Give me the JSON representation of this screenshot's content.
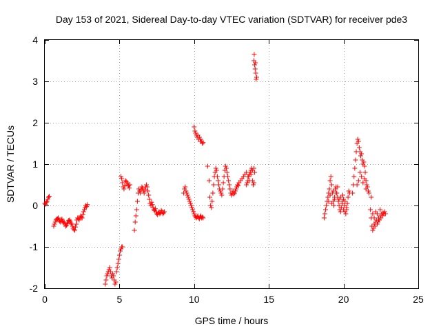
{
  "chart_data": {
    "type": "scatter",
    "title": "Day 153 of 2021, Sidereal Day-to-day VTEC variation (SDTVAR) for receiver pde3",
    "xlabel": "GPS time / hours",
    "ylabel": "SDTVAR / TECUs",
    "xlim": [
      0,
      25
    ],
    "ylim": [
      -2,
      4
    ],
    "xticks": [
      0,
      5,
      10,
      15,
      20,
      25
    ],
    "yticks": [
      -2,
      -1,
      0,
      1,
      2,
      3,
      4
    ],
    "xtick_labels": [
      "0",
      "5",
      "10",
      "15",
      "20",
      "25"
    ],
    "ytick_labels": [
      "-2",
      "-1",
      "0",
      "1",
      "2",
      "3",
      "4"
    ],
    "grid": true,
    "marker": "+",
    "series": [
      {
        "name": "pde3",
        "color": "#ff0000",
        "segments": [
          {
            "x": [
              0.0,
              0.05,
              0.1,
              0.15,
              0.2,
              0.25,
              0.3
            ],
            "y": [
              0.05,
              0.03,
              0.08,
              0.1,
              0.15,
              0.2,
              0.22
            ]
          },
          {
            "x": [
              0.6,
              0.65,
              0.7,
              0.75,
              0.8,
              0.85,
              0.9,
              0.95,
              1.0,
              1.05,
              1.1,
              1.15,
              1.2,
              1.25,
              1.3,
              1.35,
              1.4,
              1.45,
              1.5,
              1.55,
              1.6,
              1.65,
              1.7,
              1.75,
              1.8,
              1.85,
              1.9,
              1.95,
              2.0,
              2.05,
              2.1,
              2.15,
              2.2,
              2.25,
              2.3,
              2.35,
              2.4,
              2.45,
              2.5,
              2.55,
              2.6,
              2.65,
              2.7,
              2.75,
              2.8,
              2.85
            ],
            "y": [
              -0.5,
              -0.45,
              -0.4,
              -0.35,
              -0.33,
              -0.32,
              -0.3,
              -0.35,
              -0.38,
              -0.4,
              -0.35,
              -0.33,
              -0.38,
              -0.42,
              -0.4,
              -0.45,
              -0.5,
              -0.48,
              -0.44,
              -0.4,
              -0.36,
              -0.35,
              -0.38,
              -0.42,
              -0.45,
              -0.5,
              -0.55,
              -0.58,
              -0.6,
              -0.52,
              -0.45,
              -0.35,
              -0.3,
              -0.32,
              -0.35,
              -0.3,
              -0.25,
              -0.28,
              -0.3,
              -0.22,
              -0.15,
              -0.1,
              -0.05,
              0.0,
              -0.03,
              0.02
            ]
          },
          {
            "x": [
              4.05,
              4.1,
              4.15,
              4.2,
              4.25,
              4.3,
              4.35,
              4.4,
              4.45,
              4.5,
              4.55,
              4.6,
              4.65,
              4.7,
              4.75,
              4.8,
              4.85,
              4.9,
              4.95,
              5.0,
              5.05,
              5.1,
              5.15,
              5.2
            ],
            "y": [
              -1.9,
              -1.8,
              -1.7,
              -1.65,
              -1.6,
              -1.55,
              -1.5,
              -1.6,
              -1.7,
              -1.75,
              -1.65,
              -1.7,
              -1.8,
              -1.9,
              -1.85,
              -1.6,
              -1.5,
              -1.4,
              -1.3,
              -1.2,
              -1.1,
              -1.05,
              -1.0,
              -1.0
            ]
          },
          {
            "x": [
              5.1,
              5.15,
              5.2,
              5.25,
              5.3,
              5.35,
              5.4,
              5.45,
              5.5,
              5.55,
              5.6,
              5.65,
              5.7
            ],
            "y": [
              0.7,
              0.65,
              0.55,
              0.45,
              0.4,
              0.48,
              0.6,
              0.58,
              0.5,
              0.55,
              0.48,
              0.42,
              0.5
            ]
          },
          {
            "x": [
              6.0,
              6.05,
              6.1,
              6.15,
              6.2,
              6.25,
              6.3,
              6.35,
              6.4,
              6.45,
              6.5,
              6.55,
              6.6,
              6.65,
              6.7,
              6.75,
              6.8,
              6.85,
              6.9,
              6.95,
              7.0,
              7.05,
              7.1,
              7.15,
              7.2,
              7.25,
              7.3,
              7.35,
              7.4,
              7.45,
              7.5,
              7.55,
              7.6,
              7.65,
              7.7,
              7.75,
              7.8,
              7.85,
              7.9,
              7.95,
              8.0
            ],
            "y": [
              -0.6,
              -0.4,
              -0.25,
              -0.1,
              0.1,
              0.3,
              0.4,
              0.35,
              0.3,
              0.38,
              0.45,
              0.42,
              0.35,
              0.3,
              0.38,
              0.45,
              0.5,
              0.45,
              0.35,
              0.25,
              0.15,
              0.05,
              0.0,
              0.08,
              0.02,
              -0.05,
              -0.1,
              -0.12,
              -0.08,
              -0.15,
              -0.2,
              -0.22,
              -0.18,
              -0.15,
              -0.2,
              -0.18,
              -0.12,
              -0.15,
              -0.2,
              -0.18,
              -0.15
            ]
          },
          {
            "x": [
              9.3,
              9.35,
              9.4,
              9.45,
              9.5,
              9.55,
              9.6,
              9.65,
              9.7,
              9.75,
              9.8,
              9.85,
              9.9,
              9.95,
              10.0,
              10.05,
              10.1,
              10.15,
              10.2,
              10.25,
              10.3,
              10.35,
              10.4,
              10.45,
              10.5,
              10.55,
              10.6
            ],
            "y": [
              0.3,
              0.4,
              0.45,
              0.35,
              0.3,
              0.25,
              0.2,
              0.15,
              0.1,
              0.05,
              0.0,
              -0.05,
              -0.1,
              -0.15,
              -0.2,
              -0.25,
              -0.28,
              -0.3,
              -0.27,
              -0.25,
              -0.3,
              -0.32,
              -0.28,
              -0.25,
              -0.3,
              -0.28,
              -0.3
            ]
          },
          {
            "x": [
              10.0,
              10.05,
              10.1,
              10.15,
              10.2,
              10.25,
              10.3,
              10.35,
              10.4,
              10.45,
              10.5,
              10.55,
              10.6
            ],
            "y": [
              1.9,
              1.8,
              1.75,
              1.7,
              1.65,
              1.7,
              1.6,
              1.65,
              1.55,
              1.6,
              1.55,
              1.5,
              1.52
            ]
          },
          {
            "x": [
              10.9,
              11.0,
              11.05,
              11.1,
              11.15,
              11.2,
              11.25,
              11.3,
              11.35,
              11.4,
              11.45,
              11.5,
              11.55,
              11.6,
              11.65,
              11.7,
              11.75,
              11.8,
              11.85,
              11.9,
              11.95,
              12.0,
              12.05,
              12.1,
              12.15,
              12.2,
              12.25,
              12.3,
              12.35,
              12.4,
              12.45,
              12.5,
              12.55,
              12.6,
              12.65,
              12.7,
              12.75,
              12.8,
              12.85,
              12.9,
              12.95,
              13.0,
              13.1,
              13.2,
              13.3,
              13.4,
              13.5,
              13.6,
              13.7,
              13.8,
              13.9,
              14.0,
              14.05
            ],
            "y": [
              0.95,
              0.6,
              0.2,
              0.0,
              -0.05,
              0.1,
              0.3,
              0.5,
              0.7,
              0.8,
              0.9,
              0.85,
              0.7,
              0.6,
              0.5,
              0.4,
              0.35,
              0.3,
              0.25,
              0.4,
              0.55,
              0.7,
              0.85,
              0.95,
              0.9,
              0.8,
              0.7,
              0.6,
              0.5,
              0.4,
              0.3,
              0.25,
              0.3,
              0.35,
              0.28,
              0.3,
              0.35,
              0.4,
              0.45,
              0.5,
              0.48,
              0.55,
              0.6,
              0.65,
              0.7,
              0.75,
              0.8,
              0.7,
              0.6,
              0.75,
              0.85,
              0.9,
              0.8
            ]
          },
          {
            "x": [
              13.5,
              13.55,
              13.6,
              13.65,
              13.7,
              13.75,
              13.8,
              13.85,
              13.9,
              13.95,
              14.0
            ],
            "y": [
              0.5,
              0.55,
              0.6,
              0.7,
              0.75,
              0.8,
              0.85,
              0.9,
              0.6,
              0.5,
              0.55
            ]
          },
          {
            "x": [
              14.0,
              14.02,
              14.05,
              14.08,
              14.1,
              14.12,
              14.15,
              14.18
            ],
            "y": [
              3.5,
              3.65,
              3.4,
              3.3,
              3.45,
              3.2,
              3.05,
              3.1
            ]
          },
          {
            "x": [
              18.7,
              18.75,
              18.8,
              18.85,
              18.9,
              18.95,
              19.0,
              19.05,
              19.1,
              19.15,
              19.2,
              19.25,
              19.3,
              19.35,
              19.4,
              19.45,
              19.5,
              19.55,
              19.6,
              19.65,
              19.7,
              19.75,
              19.8,
              19.85,
              19.9,
              19.95,
              20.0,
              20.05,
              20.1,
              20.15,
              20.2,
              20.25,
              20.3,
              20.35,
              20.4
            ],
            "y": [
              -0.3,
              -0.2,
              -0.1,
              0.0,
              0.1,
              0.2,
              0.3,
              0.4,
              0.6,
              0.7,
              0.5,
              0.3,
              0.1,
              0.0,
              0.2,
              0.4,
              0.45,
              0.3,
              0.2,
              0.1,
              0.0,
              -0.1,
              -0.15,
              -0.05,
              0.1,
              0.25,
              0.15,
              0.0,
              -0.15,
              -0.2,
              -0.1,
              0.05,
              0.2,
              0.35,
              0.3
            ]
          },
          {
            "x": [
              19.0,
              19.1,
              19.2,
              19.3,
              19.4,
              19.5,
              19.6,
              19.7,
              19.8,
              19.9,
              20.0,
              20.1,
              20.2
            ],
            "y": [
              0.1,
              0.25,
              0.05,
              0.35,
              0.15,
              0.3,
              0.45,
              0.15,
              0.2,
              0.05,
              -0.1,
              0.1,
              -0.05
            ]
          },
          {
            "x": [
              20.6,
              20.65,
              20.7,
              20.75,
              20.8,
              20.85,
              20.9,
              20.95,
              21.0,
              21.05,
              21.1,
              21.15,
              21.2,
              21.25,
              21.3,
              21.35,
              21.4,
              21.45,
              21.5,
              21.55,
              21.6,
              21.65,
              21.7
            ],
            "y": [
              0.3,
              0.5,
              0.7,
              0.9,
              1.1,
              1.3,
              1.5,
              1.6,
              1.55,
              1.4,
              1.3,
              1.2,
              1.25,
              1.1,
              1.0,
              1.05,
              0.95,
              0.8,
              0.6,
              0.5,
              0.45,
              0.35,
              0.3
            ]
          },
          {
            "x": [
              20.9,
              21.0,
              21.1,
              21.2,
              21.3,
              21.4,
              21.5
            ],
            "y": [
              0.5,
              0.6,
              0.8,
              0.7,
              0.55,
              0.65,
              0.4
            ]
          },
          {
            "x": [
              21.8,
              21.85,
              21.9,
              21.95,
              22.0,
              22.05,
              22.1,
              22.15,
              22.2,
              22.25,
              22.3,
              22.35,
              22.4,
              22.45,
              22.5,
              22.55,
              22.6,
              22.65,
              22.7,
              22.75,
              22.8
            ],
            "y": [
              -0.1,
              -0.3,
              -0.5,
              -0.6,
              -0.55,
              -0.45,
              -0.5,
              -0.4,
              -0.35,
              -0.45,
              -0.4,
              -0.3,
              -0.35,
              -0.25,
              -0.3,
              -0.2,
              -0.25,
              -0.18,
              -0.2,
              -0.15,
              -0.2
            ]
          },
          {
            "x": [
              21.85,
              21.95,
              22.05,
              22.15,
              22.25,
              22.35,
              22.45
            ],
            "y": [
              0.2,
              -0.2,
              -0.3,
              -0.15,
              -0.2,
              -0.35,
              -0.1
            ]
          }
        ]
      }
    ]
  }
}
